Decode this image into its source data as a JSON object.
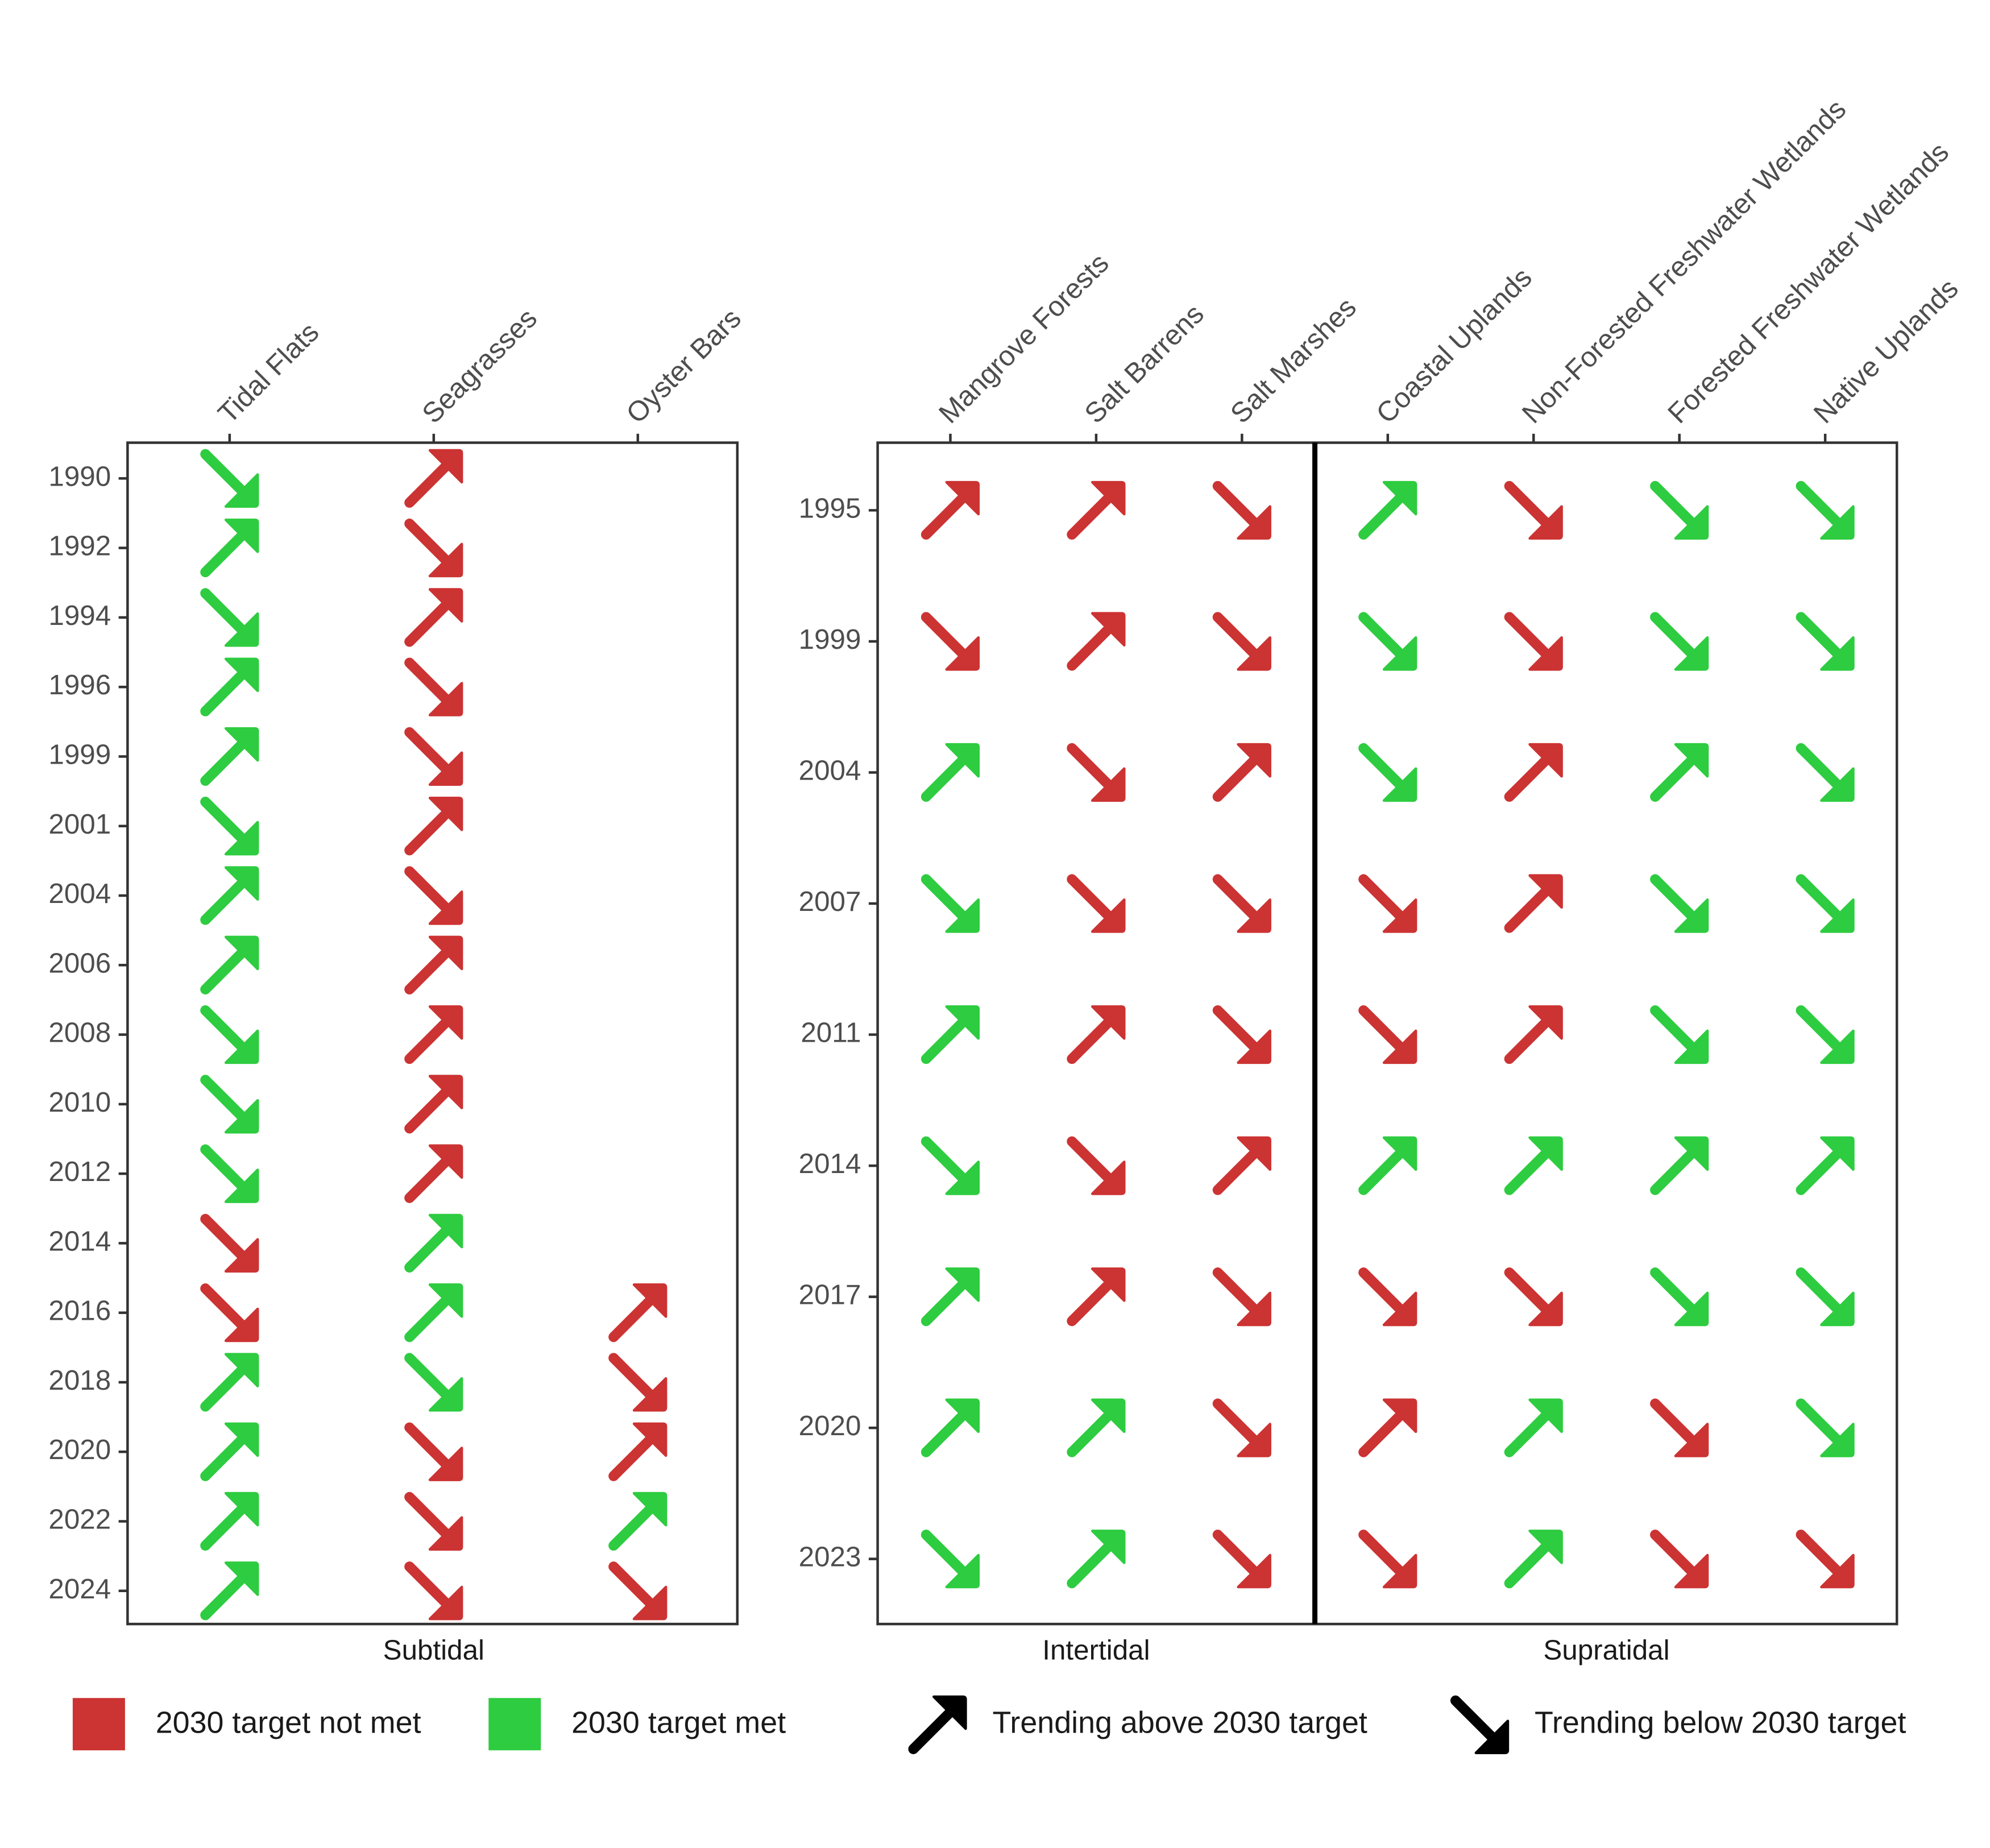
{
  "legend": {
    "status": [
      {
        "label": "2030 target not met",
        "color": "#cc3333"
      },
      {
        "label": "2030 target met",
        "color": "#2ecc40"
      }
    ],
    "trend": [
      "Trending above 2030 target",
      "Trending below 2030 target"
    ]
  },
  "chart_data": [
    {
      "type": "status-grid",
      "categories": [
        "1990",
        "1992",
        "1994",
        "1996",
        "1999",
        "2001",
        "2004",
        "2006",
        "2008",
        "2010",
        "2012",
        "2014",
        "2016",
        "2018",
        "2020",
        "2022",
        "2024"
      ],
      "facets": [
        {
          "label": "Subtidal",
          "columns": [
            {
              "name": "Tidal Flats",
              "cells": [
                [
                  1,
                  1
                ],
                [
                  1,
                  0
                ],
                [
                  1,
                  1
                ],
                [
                  1,
                  0
                ],
                [
                  1,
                  0
                ],
                [
                  1,
                  1
                ],
                [
                  1,
                  0
                ],
                [
                  1,
                  0
                ],
                [
                  1,
                  1
                ],
                [
                  1,
                  1
                ],
                [
                  1,
                  1
                ],
                [
                  0,
                  1
                ],
                [
                  0,
                  1
                ],
                [
                  1,
                  0
                ],
                [
                  1,
                  0
                ],
                [
                  1,
                  0
                ],
                [
                  1,
                  0
                ]
              ]
            },
            {
              "name": "Seagrasses",
              "cells": [
                [
                  0,
                  0
                ],
                [
                  0,
                  1
                ],
                [
                  0,
                  0
                ],
                [
                  0,
                  1
                ],
                [
                  0,
                  1
                ],
                [
                  0,
                  0
                ],
                [
                  0,
                  1
                ],
                [
                  0,
                  0
                ],
                [
                  0,
                  0
                ],
                [
                  0,
                  0
                ],
                [
                  0,
                  0
                ],
                [
                  1,
                  0
                ],
                [
                  1,
                  0
                ],
                [
                  1,
                  1
                ],
                [
                  0,
                  1
                ],
                [
                  0,
                  1
                ],
                [
                  0,
                  1
                ]
              ]
            },
            {
              "name": "Oyster Bars",
              "cells": [
                null,
                null,
                null,
                null,
                null,
                null,
                null,
                null,
                null,
                null,
                null,
                null,
                [
                  0,
                  0
                ],
                [
                  0,
                  1
                ],
                [
                  0,
                  0
                ],
                [
                  1,
                  0
                ],
                [
                  0,
                  1
                ]
              ]
            }
          ]
        }
      ]
    },
    {
      "type": "status-grid",
      "categories": [
        "1995",
        "1999",
        "2004",
        "2007",
        "2011",
        "2014",
        "2017",
        "2020",
        "2023"
      ],
      "facets": [
        {
          "label": "Intertidal",
          "columns": [
            {
              "name": "Mangrove Forests",
              "cells": [
                [
                  0,
                  0
                ],
                [
                  0,
                  1
                ],
                [
                  1,
                  0
                ],
                [
                  1,
                  1
                ],
                [
                  1,
                  0
                ],
                [
                  1,
                  1
                ],
                [
                  1,
                  0
                ],
                [
                  1,
                  0
                ],
                [
                  1,
                  1
                ]
              ]
            },
            {
              "name": "Salt Barrens",
              "cells": [
                [
                  0,
                  0
                ],
                [
                  0,
                  0
                ],
                [
                  0,
                  1
                ],
                [
                  0,
                  1
                ],
                [
                  0,
                  0
                ],
                [
                  0,
                  1
                ],
                [
                  0,
                  0
                ],
                [
                  1,
                  0
                ],
                [
                  1,
                  0
                ]
              ]
            },
            {
              "name": "Salt Marshes",
              "cells": [
                [
                  0,
                  1
                ],
                [
                  0,
                  1
                ],
                [
                  0,
                  0
                ],
                [
                  0,
                  1
                ],
                [
                  0,
                  1
                ],
                [
                  0,
                  0
                ],
                [
                  0,
                  1
                ],
                [
                  0,
                  1
                ],
                [
                  0,
                  1
                ]
              ]
            }
          ]
        },
        {
          "label": "Supratidal",
          "columns": [
            {
              "name": "Coastal Uplands",
              "cells": [
                [
                  1,
                  0
                ],
                [
                  1,
                  1
                ],
                [
                  1,
                  1
                ],
                [
                  0,
                  1
                ],
                [
                  0,
                  1
                ],
                [
                  1,
                  0
                ],
                [
                  0,
                  1
                ],
                [
                  0,
                  0
                ],
                [
                  0,
                  1
                ]
              ]
            },
            {
              "name": "Non-Forested Freshwater Wetlands",
              "cells": [
                [
                  0,
                  1
                ],
                [
                  0,
                  1
                ],
                [
                  0,
                  0
                ],
                [
                  0,
                  0
                ],
                [
                  0,
                  0
                ],
                [
                  1,
                  0
                ],
                [
                  0,
                  1
                ],
                [
                  1,
                  0
                ],
                [
                  1,
                  0
                ]
              ]
            },
            {
              "name": "Forested Freshwater Wetlands",
              "cells": [
                [
                  1,
                  1
                ],
                [
                  1,
                  1
                ],
                [
                  1,
                  0
                ],
                [
                  1,
                  1
                ],
                [
                  1,
                  1
                ],
                [
                  1,
                  0
                ],
                [
                  1,
                  1
                ],
                [
                  0,
                  1
                ],
                [
                  0,
                  1
                ]
              ]
            },
            {
              "name": "Native Uplands",
              "cells": [
                [
                  1,
                  1
                ],
                [
                  1,
                  1
                ],
                [
                  1,
                  1
                ],
                [
                  1,
                  1
                ],
                [
                  1,
                  1
                ],
                [
                  1,
                  0
                ],
                [
                  1,
                  1
                ],
                [
                  1,
                  1
                ],
                [
                  0,
                  1
                ]
              ]
            }
          ]
        }
      ]
    }
  ]
}
